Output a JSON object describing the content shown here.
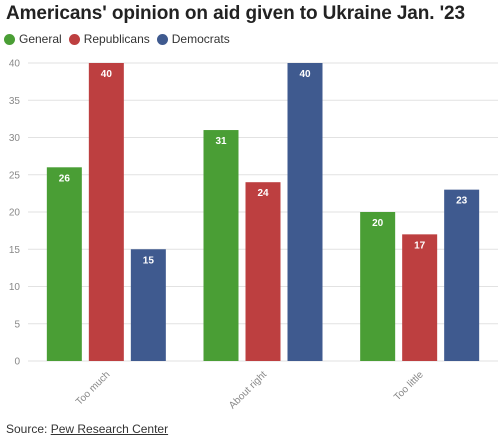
{
  "title": "Americans' opinion on aid given to Ukraine Jan. '23",
  "source": {
    "label": "Source:",
    "link_text": "Pew Research Center"
  },
  "colors": {
    "General": "#4a9e35",
    "Republicans": "#bd3f40",
    "Democrats": "#3f5a8f",
    "grid": "#e2e2e2",
    "tick": "#888888"
  },
  "chart_data": {
    "type": "bar",
    "categories": [
      "Too much",
      "About right",
      "Too little"
    ],
    "series": [
      {
        "name": "General",
        "values": [
          26,
          31,
          20
        ]
      },
      {
        "name": "Republicans",
        "values": [
          40,
          24,
          17
        ]
      },
      {
        "name": "Democrats",
        "values": [
          15,
          40,
          23
        ]
      }
    ],
    "ylim": [
      0,
      40
    ],
    "yticks": [
      0,
      5,
      10,
      15,
      20,
      25,
      30,
      35,
      40
    ],
    "grid": true,
    "legend": "top-left",
    "data_labels": true
  }
}
